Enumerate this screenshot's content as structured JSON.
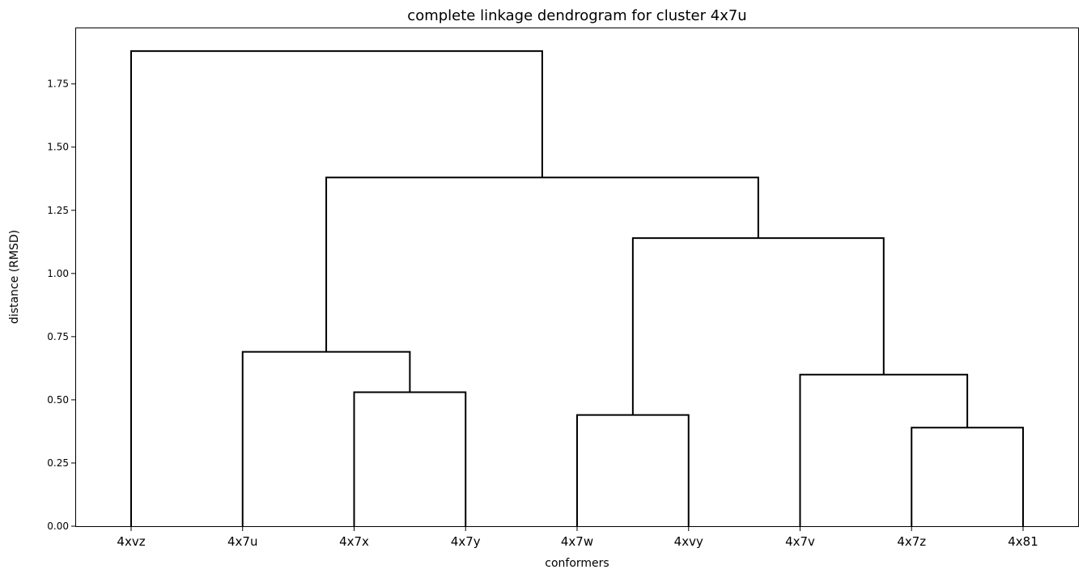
{
  "chart_data": {
    "type": "dendrogram",
    "title": "complete linkage dendrogram for cluster 4x7u",
    "xlabel": "conformers",
    "ylabel": "distance (RMSD)",
    "ylim": [
      0,
      1.97
    ],
    "yticks": [
      "0.00",
      "0.25",
      "0.50",
      "0.75",
      "1.00",
      "1.25",
      "1.50",
      "1.75"
    ],
    "leaves": [
      "4xvz",
      "4x7u",
      "4x7x",
      "4x7y",
      "4x7w",
      "4xvy",
      "4x7v",
      "4x7z",
      "4x81"
    ],
    "merges": [
      {
        "left": "4x7x",
        "right": "4x7y",
        "height": 0.53
      },
      {
        "left": "4x7u",
        "right": "4x7x+4x7y",
        "height": 0.69
      },
      {
        "left": "4x7w",
        "right": "4xvy",
        "height": 0.44
      },
      {
        "left": "4x7z",
        "right": "4x81",
        "height": 0.39
      },
      {
        "left": "4x7v",
        "right": "4x7z+4x81",
        "height": 0.6
      },
      {
        "left": "4x7w+4xvy",
        "right": "4x7v+4x7z+4x81",
        "height": 1.14
      },
      {
        "left": "4x7u+4x7x+4x7y",
        "right": "4x7w+4xvy+4x7v+4x7z+4x81",
        "height": 1.38
      },
      {
        "left": "4xvz",
        "right": "all-others",
        "height": 1.88
      }
    ],
    "links": [
      {
        "left": 2,
        "right": 3,
        "height": 0.53
      },
      {
        "left": 1,
        "right": 2.5,
        "height": 0.69
      },
      {
        "left": 4,
        "right": 5,
        "height": 0.44
      },
      {
        "left": 7,
        "right": 8,
        "height": 0.39
      },
      {
        "left": 6,
        "right": 7.5,
        "height": 0.6
      },
      {
        "left": 4.5,
        "right": 6.75,
        "height": 1.14
      },
      {
        "left": 1.75,
        "right": 5.625,
        "height": 1.38
      },
      {
        "left": 0,
        "right": 3.6875,
        "height": 1.88
      }
    ],
    "child_heights": [
      [
        0,
        0
      ],
      [
        0,
        0.53
      ],
      [
        0,
        0
      ],
      [
        0,
        0
      ],
      [
        0,
        0.39
      ],
      [
        0.44,
        0.6
      ],
      [
        0.69,
        1.14
      ],
      [
        0,
        1.38
      ]
    ],
    "grid": false,
    "legend": "none",
    "line_color": "#000000"
  }
}
